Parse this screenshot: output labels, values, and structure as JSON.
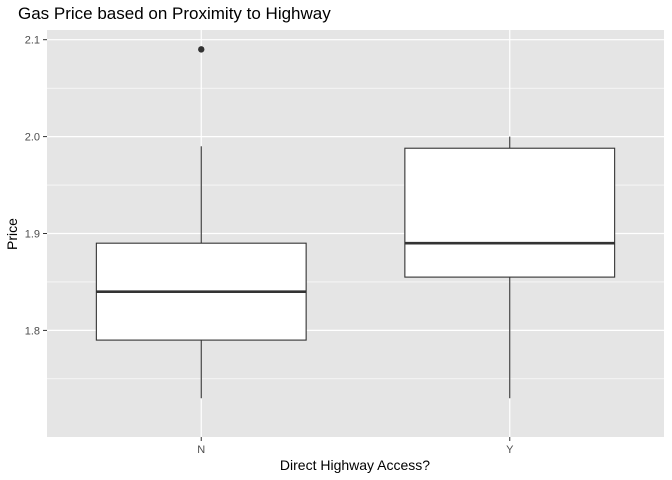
{
  "chart_data": {
    "type": "boxplot",
    "title": "Gas Price based on Proximity to Highway",
    "xlabel": "Direct Highway Access?",
    "ylabel": "Price",
    "categories": [
      "N",
      "Y"
    ],
    "boxes": [
      {
        "category": "N",
        "whisker_low": 1.73,
        "q1": 1.79,
        "median": 1.84,
        "q3": 1.89,
        "whisker_high": 1.99,
        "outliers": [
          2.09
        ]
      },
      {
        "category": "Y",
        "whisker_low": 1.73,
        "q1": 1.855,
        "median": 1.89,
        "q3": 1.988,
        "whisker_high": 2.0,
        "outliers": []
      }
    ],
    "ylim": [
      1.69,
      2.11
    ],
    "yticks": [
      1.8,
      1.9,
      2.0,
      2.1
    ],
    "ytick_labels": [
      "1.8",
      "1.9",
      "2.0",
      "2.1"
    ],
    "grid": true,
    "colors": {
      "panel": "#e5e5e5",
      "grid": "#ffffff",
      "box_fill": "#ffffff",
      "box_line": "#333333"
    }
  }
}
